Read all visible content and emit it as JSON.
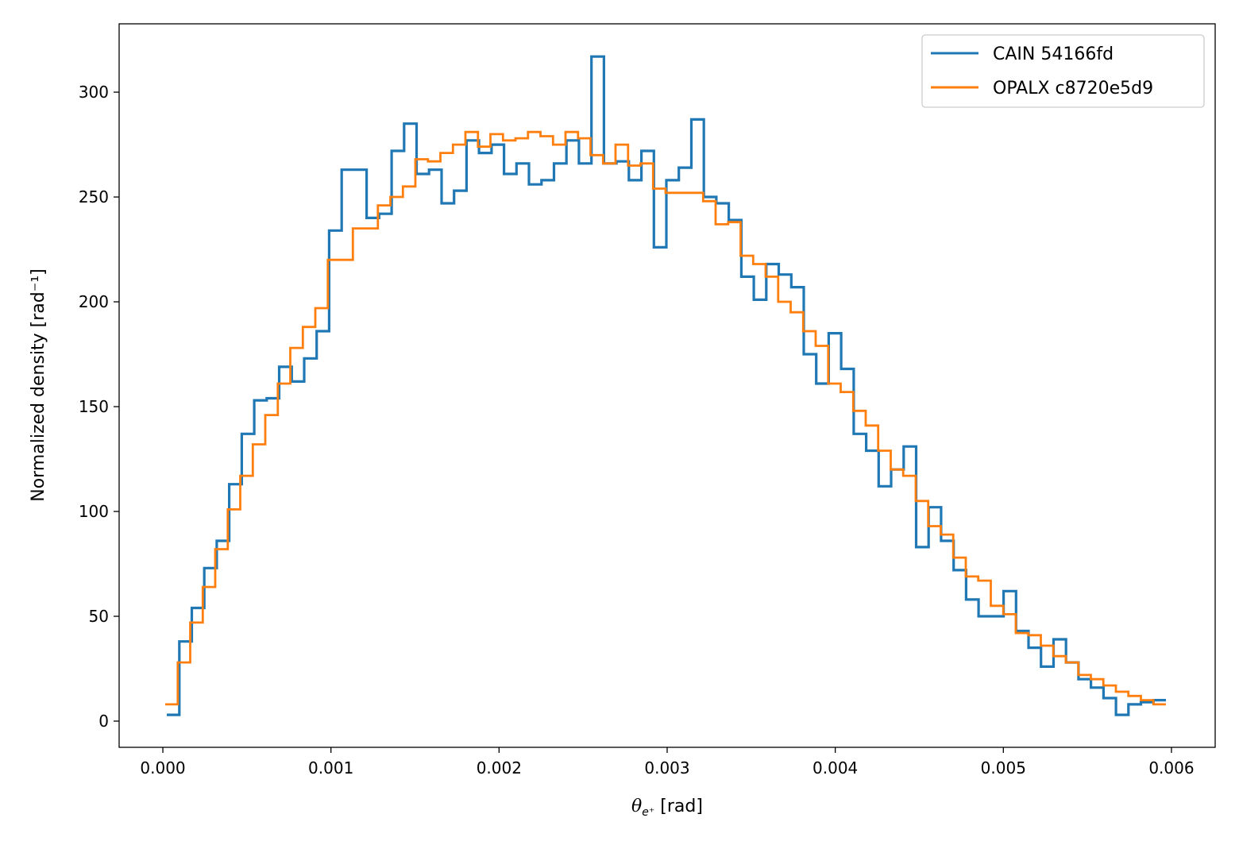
{
  "chart_data": {
    "type": "histogram-step",
    "title": "",
    "xlabel": "θ",
    "xlabel_sub": "e⁺",
    "xlabel_unit": " [rad]",
    "ylabel": "Normalized density [rad⁻¹]",
    "xlim": [
      -0.00026,
      0.00626
    ],
    "ylim": [
      -12.5,
      332.6
    ],
    "xticks": [
      0.0,
      0.001,
      0.002,
      0.003,
      0.004,
      0.005,
      0.006
    ],
    "xtick_labels": [
      "0.000",
      "0.001",
      "0.002",
      "0.003",
      "0.004",
      "0.005",
      "0.006"
    ],
    "yticks": [
      0,
      50,
      100,
      150,
      200,
      250,
      300
    ],
    "ytick_labels": [
      "0",
      "50",
      "100",
      "150",
      "200",
      "250",
      "300"
    ],
    "grid": false,
    "legend_position": "top-right",
    "series": [
      {
        "name": "CAIN 54166fd",
        "color": "#1f77b4",
        "bin_range": [
          2.36e-05,
          0.005967
        ],
        "values": [
          3,
          38,
          54,
          73,
          86,
          113,
          137,
          153,
          154,
          169,
          162,
          173,
          186,
          234,
          263,
          263,
          240,
          242,
          272,
          285,
          261,
          263,
          247,
          253,
          277,
          271,
          275,
          261,
          266,
          256,
          258,
          266,
          277,
          266,
          317,
          266,
          267,
          258,
          272,
          226,
          258,
          264,
          287,
          250,
          247,
          239,
          212,
          201,
          218,
          213,
          207,
          175,
          161,
          185,
          168,
          137,
          129,
          112,
          120,
          131,
          83,
          102,
          86,
          72,
          58,
          50,
          50,
          62,
          43,
          35,
          26,
          39,
          28,
          20,
          16,
          11,
          3,
          8,
          9,
          10
        ]
      },
      {
        "name": "OPALX c8720e5d9",
        "color": "#ff7f0e",
        "bin_range": [
          1.42e-05,
          0.005967
        ],
        "values": [
          8,
          28,
          47,
          64,
          82,
          101,
          117,
          132,
          146,
          161,
          178,
          188,
          197,
          220,
          220,
          235,
          235,
          246,
          250,
          255,
          268,
          267,
          271,
          275,
          281,
          274,
          280,
          277,
          278,
          281,
          279,
          275,
          281,
          278,
          270,
          266,
          275,
          265,
          266,
          254,
          252,
          252,
          252,
          248,
          237,
          238,
          222,
          218,
          212,
          200,
          195,
          186,
          179,
          161,
          157,
          148,
          141,
          129,
          120,
          117,
          105,
          93,
          89,
          78,
          69,
          67,
          55,
          51,
          42,
          41,
          36,
          31,
          28,
          22,
          20,
          17,
          14,
          12,
          10,
          8
        ]
      }
    ]
  }
}
